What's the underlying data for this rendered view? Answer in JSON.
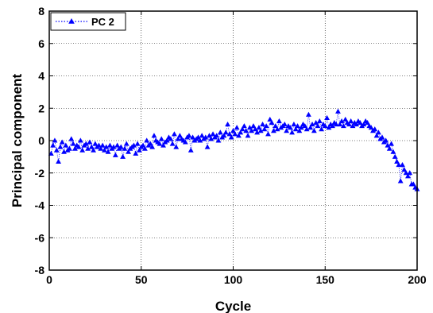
{
  "chart_data": {
    "type": "scatter",
    "xlabel": "Cycle",
    "ylabel": "Principal component",
    "xlim": [
      0,
      200
    ],
    "ylim": [
      -8,
      8
    ],
    "xticks": [
      0,
      50,
      100,
      150,
      200
    ],
    "yticks": [
      -8,
      -6,
      -4,
      -2,
      0,
      2,
      4,
      6,
      8
    ],
    "grid": true,
    "legend_position": "top-left",
    "series": [
      {
        "name": "PC 2",
        "color": "#0000ff",
        "marker": "triangle",
        "line_style": "dotted",
        "x": [
          1,
          2,
          3,
          4,
          5,
          6,
          7,
          8,
          9,
          10,
          11,
          12,
          13,
          14,
          15,
          16,
          17,
          18,
          19,
          20,
          21,
          22,
          23,
          24,
          25,
          26,
          27,
          28,
          29,
          30,
          31,
          32,
          33,
          34,
          35,
          36,
          37,
          38,
          39,
          40,
          41,
          42,
          43,
          44,
          45,
          46,
          47,
          48,
          49,
          50,
          51,
          52,
          53,
          54,
          55,
          56,
          57,
          58,
          59,
          60,
          61,
          62,
          63,
          64,
          65,
          66,
          67,
          68,
          69,
          70,
          71,
          72,
          73,
          74,
          75,
          76,
          77,
          78,
          79,
          80,
          81,
          82,
          83,
          84,
          85,
          86,
          87,
          88,
          89,
          90,
          91,
          92,
          93,
          94,
          95,
          96,
          97,
          98,
          99,
          100,
          101,
          102,
          103,
          104,
          105,
          106,
          107,
          108,
          109,
          110,
          111,
          112,
          113,
          114,
          115,
          116,
          117,
          118,
          119,
          120,
          121,
          122,
          123,
          124,
          125,
          126,
          127,
          128,
          129,
          130,
          131,
          132,
          133,
          134,
          135,
          136,
          137,
          138,
          139,
          140,
          141,
          142,
          143,
          144,
          145,
          146,
          147,
          148,
          149,
          150,
          151,
          152,
          153,
          154,
          155,
          156,
          157,
          158,
          159,
          160,
          161,
          162,
          163,
          164,
          165,
          166,
          167,
          168,
          169,
          170,
          171,
          172,
          173,
          174,
          175,
          176,
          177,
          178,
          179,
          180,
          181,
          182,
          183,
          184,
          185,
          186,
          187,
          188,
          189,
          190,
          191,
          192,
          193,
          194,
          195,
          196,
          197,
          198,
          199,
          200
        ],
        "y": [
          -0.8,
          -0.3,
          0.0,
          -0.6,
          -1.3,
          -0.4,
          -0.1,
          -0.7,
          -0.3,
          -0.6,
          -0.5,
          0.1,
          -0.2,
          -0.5,
          -0.3,
          -0.4,
          0.0,
          -0.6,
          -0.3,
          -0.2,
          -0.5,
          -0.1,
          -0.4,
          -0.6,
          -0.2,
          -0.4,
          -0.3,
          -0.5,
          -0.3,
          -0.6,
          -0.4,
          -0.7,
          -0.3,
          -0.5,
          -0.4,
          -0.9,
          -0.3,
          -0.5,
          -0.4,
          -1.0,
          -0.5,
          -0.2,
          -0.7,
          -0.5,
          -0.4,
          -0.3,
          -0.8,
          -0.2,
          -0.6,
          -0.4,
          -0.3,
          -0.5,
          0.0,
          -0.3,
          -0.2,
          -0.4,
          0.3,
          0.0,
          -0.1,
          -0.2,
          0.1,
          -0.3,
          -0.1,
          0.0,
          0.2,
          0.1,
          -0.2,
          0.4,
          -0.4,
          0.1,
          0.3,
          0.1,
          0.0,
          -0.1,
          0.2,
          0.3,
          -0.6,
          0.2,
          0.0,
          0.1,
          0.2,
          0.0,
          0.3,
          0.1,
          0.2,
          -0.4,
          0.3,
          0.1,
          0.4,
          0.2,
          0.3,
          0.0,
          0.5,
          0.2,
          0.3,
          0.5,
          1.0,
          0.4,
          0.2,
          0.6,
          0.4,
          0.8,
          0.3,
          0.5,
          0.7,
          0.9,
          0.6,
          0.3,
          0.8,
          0.6,
          0.9,
          0.7,
          0.5,
          0.8,
          0.6,
          1.0,
          0.7,
          0.9,
          0.4,
          1.3,
          1.1,
          0.6,
          0.9,
          0.7,
          1.2,
          0.8,
          0.9,
          1.0,
          0.6,
          0.9,
          0.8,
          0.5,
          1.0,
          0.7,
          0.9,
          0.6,
          0.8,
          1.0,
          0.9,
          0.7,
          1.6,
          0.8,
          1.0,
          0.6,
          1.1,
          0.9,
          1.2,
          0.7,
          1.0,
          0.9,
          1.4,
          0.8,
          1.0,
          0.9,
          1.1,
          1.0,
          1.8,
          1.0,
          1.2,
          0.9,
          1.3,
          1.1,
          1.0,
          1.2,
          0.9,
          1.1,
          1.0,
          1.2,
          1.1,
          0.9,
          1.0,
          1.2,
          1.1,
          0.9,
          0.8,
          0.6,
          0.7,
          0.3,
          0.5,
          0.1,
          0.2,
          -0.1,
          0.0,
          -0.3,
          -0.5,
          -0.2,
          -0.7,
          -1.0,
          -1.3,
          -1.5,
          -2.5,
          -1.5,
          -1.8,
          -2.0,
          -2.2,
          -2.0,
          -2.7,
          -2.7,
          -2.9,
          -3.0
        ]
      }
    ]
  }
}
